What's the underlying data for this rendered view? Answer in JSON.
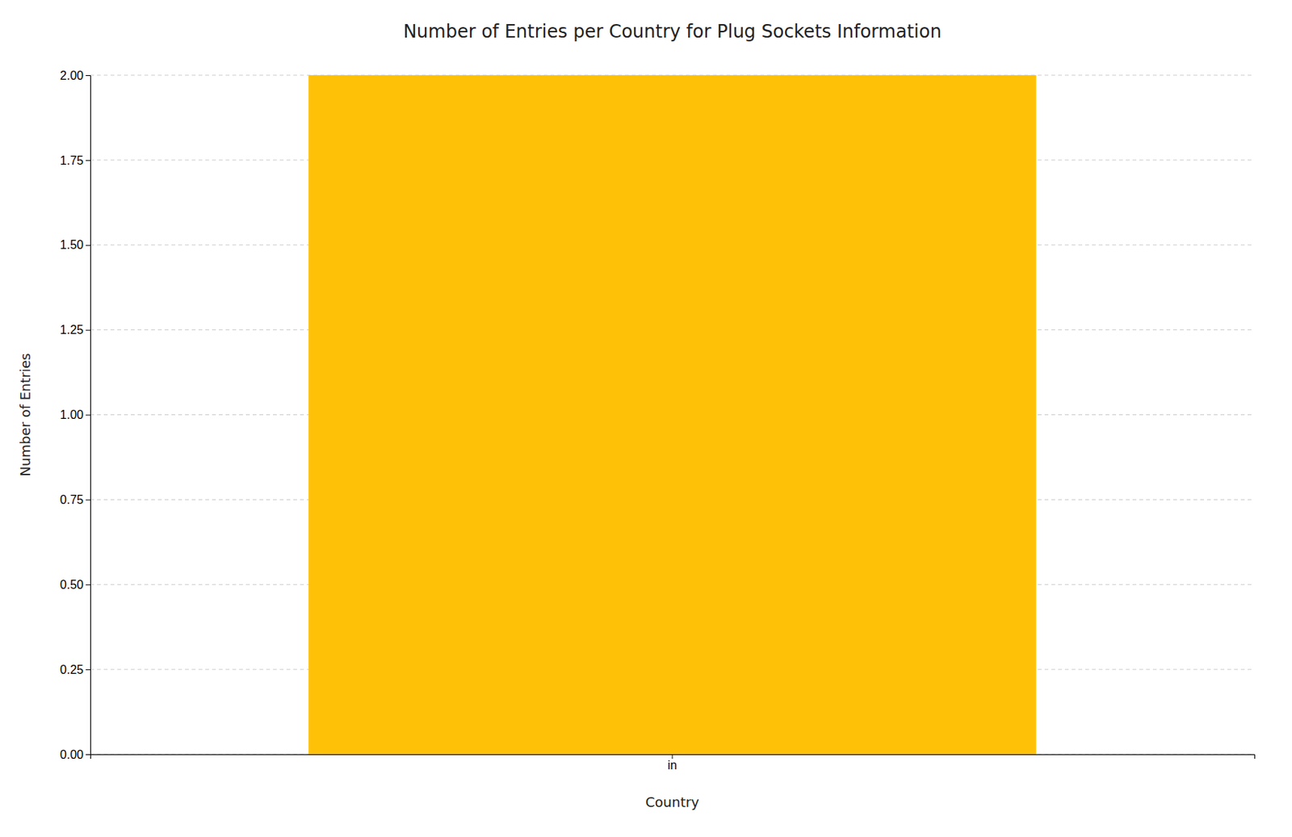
{
  "chart_data": {
    "type": "bar",
    "title": "Number of Entries per Country for Plug Sockets Information",
    "xlabel": "Country",
    "ylabel": "Number of Entries",
    "categories": [
      "in"
    ],
    "values": [
      2
    ],
    "color": "#FFC107",
    "ylim": [
      0,
      2.0
    ],
    "yticks": [
      {
        "value": 0.0,
        "label": "0.00"
      },
      {
        "value": 0.25,
        "label": "0.25"
      },
      {
        "value": 0.5,
        "label": "0.50"
      },
      {
        "value": 0.75,
        "label": "0.75"
      },
      {
        "value": 1.0,
        "label": "1.00"
      },
      {
        "value": 1.25,
        "label": "1.25"
      },
      {
        "value": 1.5,
        "label": "1.50"
      },
      {
        "value": 1.75,
        "label": "1.75"
      },
      {
        "value": 2.0,
        "label": "2.00"
      }
    ],
    "grid": true
  }
}
